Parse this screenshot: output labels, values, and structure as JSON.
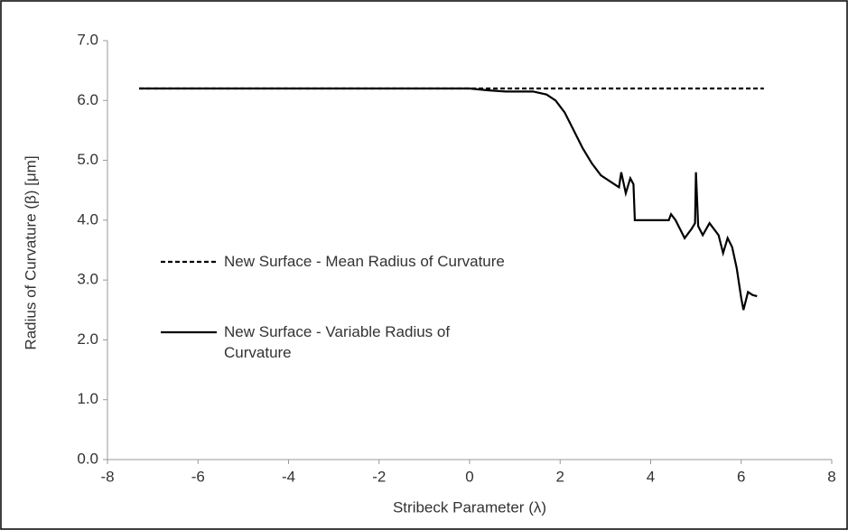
{
  "chart_data": {
    "type": "line",
    "x_label": "Stribeck Parameter (λ)",
    "y_label": "Radius of Curvature (β) [μm]",
    "xlim": [
      -8,
      8
    ],
    "xticks": [
      -8,
      -6,
      -4,
      -2,
      0,
      2,
      4,
      6,
      8
    ],
    "ylim": [
      0,
      7
    ],
    "yticks": [
      {
        "value": 0,
        "label": "0.0"
      },
      {
        "value": 1,
        "label": "1.0"
      },
      {
        "value": 2,
        "label": "2.0"
      },
      {
        "value": 3,
        "label": "3.0"
      },
      {
        "value": 4,
        "label": "4.0"
      },
      {
        "value": 5,
        "label": "5.0"
      },
      {
        "value": 6,
        "label": "6.0"
      },
      {
        "value": 7,
        "label": "7.0"
      }
    ],
    "grid": false,
    "legend": "left",
    "series": [
      {
        "name": "New Surface - Mean Radius of Curvature",
        "color": "#000000",
        "dash": true,
        "x": [
          -7.3,
          6.5
        ],
        "values": [
          6.2,
          6.2
        ]
      },
      {
        "name": "New Surface - Variable Radius of Curvature",
        "color": "#000000",
        "dash": false,
        "x": [
          -7.3,
          0,
          0.4,
          0.8,
          1.4,
          1.7,
          1.9,
          2.1,
          2.3,
          2.5,
          2.7,
          2.9,
          3.1,
          3.3,
          3.35,
          3.45,
          3.55,
          3.62,
          3.65,
          4.4,
          4.45,
          4.55,
          4.75,
          4.9,
          4.98,
          5.0,
          5.05,
          5.15,
          5.3,
          5.5,
          5.6,
          5.7,
          5.8,
          5.9,
          6.0,
          6.05,
          6.15,
          6.25,
          6.35
        ],
        "values": [
          6.2,
          6.2,
          6.17,
          6.15,
          6.15,
          6.1,
          6.0,
          5.8,
          5.5,
          5.2,
          4.95,
          4.75,
          4.65,
          4.55,
          4.8,
          4.45,
          4.7,
          4.6,
          4.0,
          4.0,
          4.1,
          4.0,
          3.7,
          3.85,
          3.95,
          4.8,
          3.9,
          3.75,
          3.95,
          3.75,
          3.45,
          3.7,
          3.55,
          3.2,
          2.7,
          2.5,
          2.8,
          2.75,
          2.73
        ]
      }
    ]
  }
}
